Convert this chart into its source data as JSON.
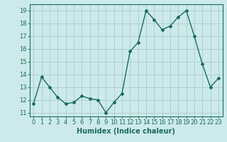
{
  "x": [
    0,
    1,
    2,
    3,
    4,
    5,
    6,
    7,
    8,
    9,
    10,
    11,
    12,
    13,
    14,
    15,
    16,
    17,
    18,
    19,
    20,
    21,
    22,
    23
  ],
  "y": [
    11.7,
    13.8,
    13.0,
    12.2,
    11.7,
    11.8,
    12.3,
    12.1,
    12.0,
    11.0,
    11.8,
    12.5,
    15.8,
    16.5,
    19.0,
    18.3,
    17.5,
    17.8,
    18.5,
    19.0,
    17.0,
    14.8,
    13.0,
    13.7
  ],
  "line_color": "#1a6b5a",
  "marker": "D",
  "marker_size": 2,
  "bg_color": "#cceaea",
  "grid_color": "#aacccc",
  "xlabel": "Humidex (Indice chaleur)",
  "ylim": [
    10.7,
    19.5
  ],
  "yticks": [
    11,
    12,
    13,
    14,
    15,
    16,
    17,
    18,
    19
  ],
  "axis_color": "#1a6b5a",
  "tick_label_color": "#1a6b5a",
  "xlabel_color": "#1a6b5a",
  "xlabel_fontsize": 7,
  "tick_fontsize": 6,
  "linewidth": 1.0
}
